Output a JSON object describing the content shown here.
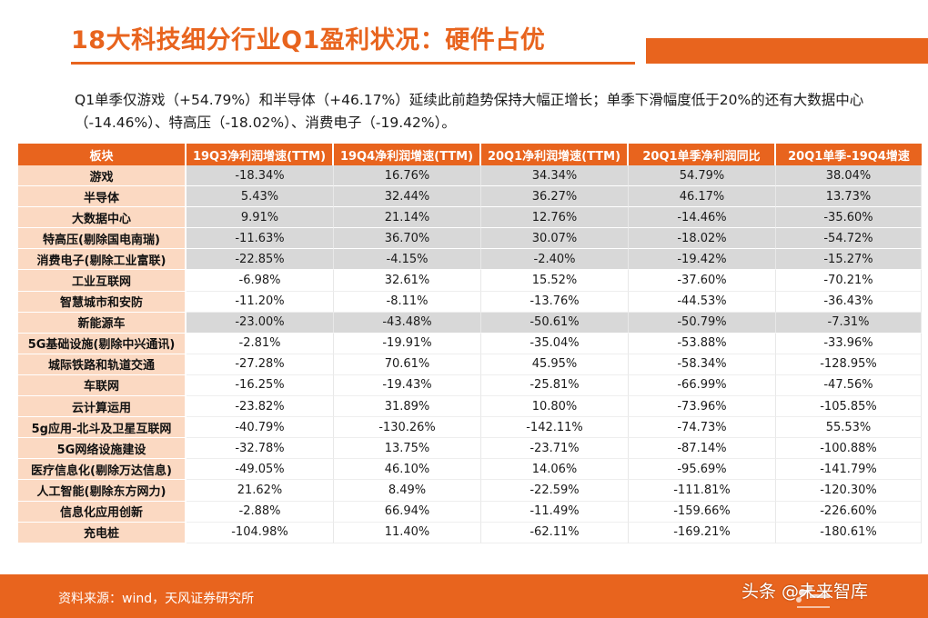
{
  "header": {
    "title": "18大科技细分行业Q1盈利状况：硬件占优"
  },
  "summary": {
    "text": "Q1单季仅游戏（+54.79%）和半导体（+46.17%）延续此前趋势保持大幅正增长；单季下滑幅度低于20%的还有大数据中心（-14.46%）、特高压（-18.02%）、消费电子（-19.42%）。"
  },
  "table": {
    "columns": [
      "板块",
      "19Q3净利润增速(TTM)",
      "19Q4净利润增速(TTM)",
      "20Q1净利润增速(TTM)",
      "20Q1单季净利润同比",
      "20Q1单季-19Q4增速"
    ],
    "rows": [
      {
        "sector": "游戏",
        "shaded": true,
        "values": [
          "-18.34%",
          "16.76%",
          "34.34%",
          "54.79%",
          "38.04%"
        ]
      },
      {
        "sector": "半导体",
        "shaded": true,
        "values": [
          "5.43%",
          "32.44%",
          "36.27%",
          "46.17%",
          "13.73%"
        ]
      },
      {
        "sector": "大数据中心",
        "shaded": true,
        "values": [
          "9.91%",
          "21.14%",
          "12.76%",
          "-14.46%",
          "-35.60%"
        ]
      },
      {
        "sector": "特高压(剔除国电南瑞)",
        "shaded": true,
        "values": [
          "-11.63%",
          "36.70%",
          "30.07%",
          "-18.02%",
          "-54.72%"
        ]
      },
      {
        "sector": "消费电子(剔除工业富联)",
        "shaded": true,
        "values": [
          "-22.85%",
          "-4.15%",
          "-2.40%",
          "-19.42%",
          "-15.27%"
        ]
      },
      {
        "sector": "工业互联网",
        "shaded": false,
        "values": [
          "-6.98%",
          "32.61%",
          "15.52%",
          "-37.60%",
          "-70.21%"
        ]
      },
      {
        "sector": "智慧城市和安防",
        "shaded": false,
        "values": [
          "-11.20%",
          "-8.11%",
          "-13.76%",
          "-44.53%",
          "-36.43%"
        ]
      },
      {
        "sector": "新能源车",
        "shaded": true,
        "values": [
          "-23.00%",
          "-43.48%",
          "-50.61%",
          "-50.79%",
          "-7.31%"
        ]
      },
      {
        "sector": "5G基础设施(剔除中兴通讯)",
        "shaded": false,
        "values": [
          "-2.81%",
          "-19.91%",
          "-35.04%",
          "-53.88%",
          "-33.96%"
        ]
      },
      {
        "sector": "城际铁路和轨道交通",
        "shaded": false,
        "values": [
          "-27.28%",
          "70.61%",
          "45.95%",
          "-58.34%",
          "-128.95%"
        ]
      },
      {
        "sector": "车联网",
        "shaded": false,
        "values": [
          "-16.25%",
          "-19.43%",
          "-25.81%",
          "-66.99%",
          "-47.56%"
        ]
      },
      {
        "sector": "云计算运用",
        "shaded": false,
        "values": [
          "-23.82%",
          "31.89%",
          "10.80%",
          "-73.96%",
          "-105.85%"
        ]
      },
      {
        "sector": "5g应用-北斗及卫星互联网",
        "shaded": false,
        "values": [
          "-40.79%",
          "-130.26%",
          "-142.11%",
          "-74.73%",
          "55.53%"
        ]
      },
      {
        "sector": "5G网络设施建设",
        "shaded": false,
        "values": [
          "-32.78%",
          "13.75%",
          "-23.71%",
          "-87.14%",
          "-100.88%"
        ]
      },
      {
        "sector": "医疗信息化(剔除万达信息)",
        "shaded": false,
        "values": [
          "-49.05%",
          "46.10%",
          "14.06%",
          "-95.69%",
          "-141.79%"
        ]
      },
      {
        "sector": "人工智能(剔除东方网力)",
        "shaded": false,
        "values": [
          "21.62%",
          "8.49%",
          "-22.59%",
          "-111.81%",
          "-120.30%"
        ]
      },
      {
        "sector": "信息化应用创新",
        "shaded": false,
        "values": [
          "-2.88%",
          "66.94%",
          "-11.49%",
          "-159.66%",
          "-226.60%"
        ]
      },
      {
        "sector": "充电桩",
        "shaded": false,
        "values": [
          "-104.98%",
          "11.40%",
          "-62.11%",
          "-169.21%",
          "-180.61%"
        ]
      }
    ]
  },
  "footer": {
    "source": "资料来源：wind，天风证券研究所",
    "watermark": "头条 @未来智库"
  },
  "colors": {
    "accent": "#E8641E",
    "sector_cell": "#FBD9C2",
    "shaded_row": "#D8D8D8"
  },
  "icons": {
    "footer_logo": "tianfeng-securities-logo-icon"
  }
}
